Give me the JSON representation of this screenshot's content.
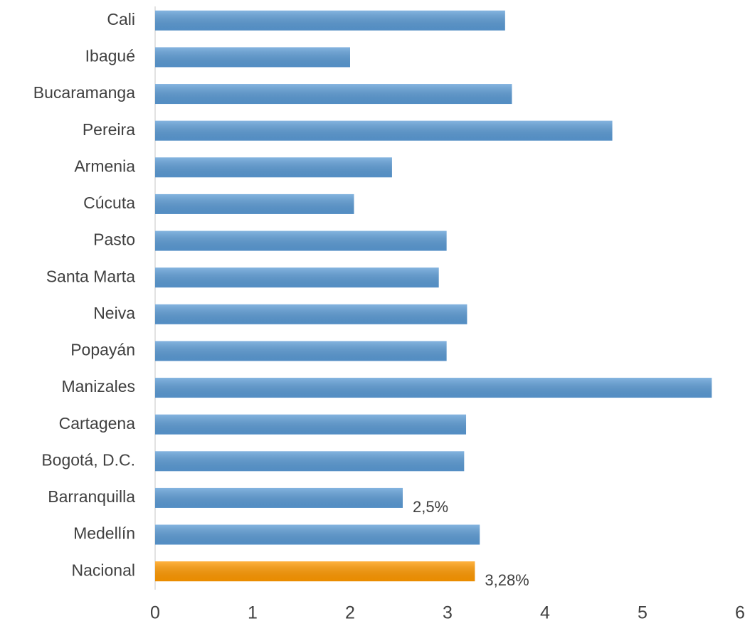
{
  "chart_data": {
    "type": "barh",
    "categories": [
      "Cali",
      "Ibagué",
      "Bucaramanga",
      "Pereira",
      "Armenia",
      "Cúcuta",
      "Pasto",
      "Santa Marta",
      "Neiva",
      "Popayán",
      "Manizales",
      "Cartagena",
      "Bogotá, D.C.",
      "Barranquilla",
      "Medellín",
      "Nacional"
    ],
    "values": [
      3.59,
      2.0,
      3.66,
      4.69,
      2.43,
      2.04,
      2.99,
      2.91,
      3.2,
      2.99,
      5.71,
      3.19,
      3.17,
      2.54,
      3.33,
      3.28
    ],
    "value_labels": [
      null,
      null,
      null,
      null,
      null,
      null,
      null,
      null,
      null,
      null,
      null,
      null,
      null,
      "2,5%",
      null,
      "3,28%"
    ],
    "colors": [
      "#5b9bd5",
      "#5b9bd5",
      "#5b9bd5",
      "#5b9bd5",
      "#5b9bd5",
      "#5b9bd5",
      "#5b9bd5",
      "#5b9bd5",
      "#5b9bd5",
      "#5b9bd5",
      "#5b9bd5",
      "#5b9bd5",
      "#5b9bd5",
      "#5b9bd5",
      "#5b9bd5",
      "#ff9900"
    ],
    "xlim": [
      0,
      6
    ],
    "xticks": [
      0,
      1,
      2,
      3,
      4,
      5,
      6
    ],
    "grid": false
  }
}
